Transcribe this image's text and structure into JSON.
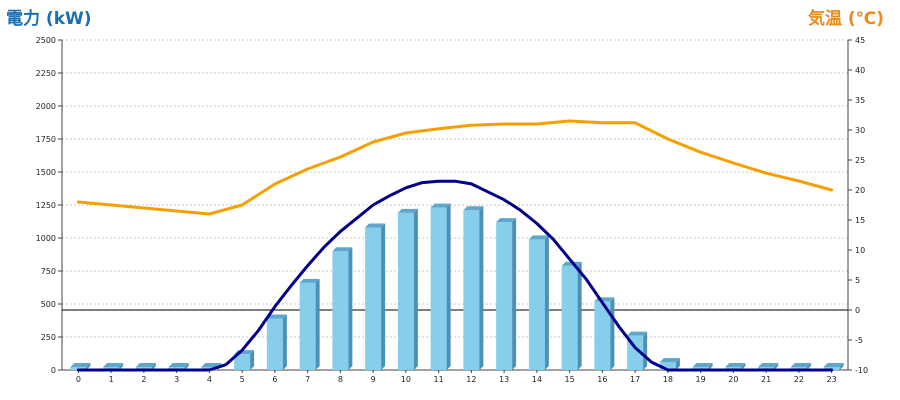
{
  "chart_data": {
    "type": "bar",
    "left_axis": {
      "title": "電力 (kW)",
      "color": "#1a6fb5",
      "range": [
        0,
        2500
      ],
      "ticks": [
        "0",
        "250",
        "500",
        "750",
        "1000",
        "1250",
        "1500",
        "1750",
        "2000",
        "2250",
        "2500"
      ]
    },
    "right_axis": {
      "title": "気温 (℃)",
      "color": "#ef8a17",
      "range": [
        -10,
        45
      ],
      "ticks": [
        "-10",
        "-5",
        "0",
        "5",
        "10",
        "15",
        "20",
        "25",
        "30",
        "35",
        "40",
        "45"
      ]
    },
    "categories": [
      "0",
      "1",
      "2",
      "3",
      "4",
      "5",
      "6",
      "7",
      "8",
      "9",
      "10",
      "11",
      "12",
      "13",
      "14",
      "15",
      "16",
      "17",
      "18",
      "19",
      "20",
      "21",
      "22",
      "23"
    ],
    "grid": true,
    "reference_line": {
      "axis": "right",
      "value": 0
    },
    "series": [
      {
        "kind": "bar",
        "axis": "left",
        "color": "#87ceeb",
        "side_color": "#4a90b8",
        "top_color": "#5fa6cc",
        "values": [
          0,
          0,
          0,
          0,
          0,
          120,
          390,
          660,
          900,
          1080,
          1190,
          1230,
          1210,
          1120,
          990,
          790,
          520,
          260,
          60,
          0,
          0,
          0,
          0,
          0
        ]
      },
      {
        "kind": "line",
        "axis": "left",
        "color": "#00008b",
        "x": [
          0,
          1,
          2,
          3,
          4,
          4.5,
          5,
          5.5,
          6,
          6.5,
          7,
          7.5,
          8,
          8.5,
          9,
          9.5,
          10,
          10.5,
          11,
          11.5,
          12,
          12.5,
          13,
          13.5,
          14,
          14.5,
          15,
          15.5,
          16,
          16.5,
          17,
          17.5,
          18,
          19,
          20,
          21,
          22,
          23
        ],
        "values": [
          0,
          0,
          0,
          0,
          0,
          40,
          150,
          300,
          480,
          640,
          790,
          930,
          1050,
          1150,
          1250,
          1320,
          1380,
          1420,
          1430,
          1430,
          1410,
          1350,
          1290,
          1210,
          1110,
          990,
          840,
          690,
          510,
          330,
          170,
          60,
          0,
          0,
          0,
          0,
          0,
          0
        ]
      },
      {
        "kind": "line",
        "axis": "right",
        "color": "#f5a000",
        "values": [
          18,
          17.5,
          17,
          16.5,
          16,
          17.5,
          21,
          23.5,
          25.5,
          28,
          29.5,
          30.2,
          30.8,
          31,
          31,
          31.5,
          31.2,
          31.2,
          28.5,
          26.3,
          24.5,
          22.8,
          21.5,
          20
        ]
      }
    ]
  }
}
